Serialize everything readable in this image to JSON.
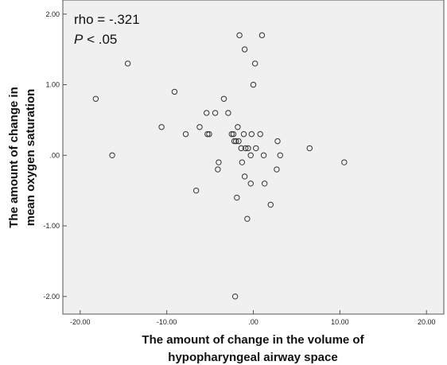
{
  "chart_data": {
    "type": "scatter",
    "xlabel_lines": [
      "The amount of change in the volume of",
      "hypopharyngeal airway space"
    ],
    "ylabel_lines": [
      "The amount of change in",
      "mean oxygen saturation"
    ],
    "annotation": {
      "rho": "rho = -.321",
      "p_italic": "P",
      "p_rest": " < .05"
    },
    "xlim": [
      -22,
      22
    ],
    "ylim": [
      -2.25,
      2.2
    ],
    "x_ticks": [
      -20,
      -10,
      0,
      10,
      20
    ],
    "x_tick_labels": [
      "-20.00",
      "-10.00",
      ".00",
      "10.00",
      "20.00"
    ],
    "y_ticks": [
      2,
      1,
      0,
      -1,
      -2
    ],
    "y_tick_labels": [
      "2.00",
      "1.00",
      ".00",
      "-1.00",
      "-2.00"
    ],
    "grid": false,
    "colors": {
      "plot_background": "#f0f0f0",
      "marker_stroke": "#333333",
      "marker_fill": "none"
    },
    "points": [
      {
        "x": -18.2,
        "y": 0.8
      },
      {
        "x": -16.3,
        "y": 0.0
      },
      {
        "x": -14.5,
        "y": 1.3
      },
      {
        "x": -10.6,
        "y": 0.4
      },
      {
        "x": -9.1,
        "y": 0.9
      },
      {
        "x": -7.8,
        "y": 0.3
      },
      {
        "x": -6.2,
        "y": 0.4
      },
      {
        "x": -6.6,
        "y": -0.5
      },
      {
        "x": -5.4,
        "y": 0.6
      },
      {
        "x": -5.3,
        "y": 0.3
      },
      {
        "x": -5.1,
        "y": 0.3
      },
      {
        "x": -4.4,
        "y": 0.6
      },
      {
        "x": -4.0,
        "y": -0.1
      },
      {
        "x": -4.1,
        "y": -0.2
      },
      {
        "x": -3.4,
        "y": 0.8
      },
      {
        "x": -2.9,
        "y": 0.6
      },
      {
        "x": -2.5,
        "y": 0.3
      },
      {
        "x": -2.3,
        "y": 0.3
      },
      {
        "x": -2.2,
        "y": 0.2
      },
      {
        "x": -2.0,
        "y": 0.2
      },
      {
        "x": -1.7,
        "y": 0.2
      },
      {
        "x": -1.8,
        "y": 0.4
      },
      {
        "x": -1.9,
        "y": -0.6
      },
      {
        "x": -2.1,
        "y": -2.0
      },
      {
        "x": -1.6,
        "y": 1.7
      },
      {
        "x": -1.4,
        "y": 0.1
      },
      {
        "x": -1.3,
        "y": -0.1
      },
      {
        "x": -1.1,
        "y": 0.3
      },
      {
        "x": -1.0,
        "y": 1.5
      },
      {
        "x": -1.0,
        "y": -0.3
      },
      {
        "x": -0.9,
        "y": 0.1
      },
      {
        "x": -0.6,
        "y": 0.1
      },
      {
        "x": -0.7,
        "y": -0.9
      },
      {
        "x": -0.3,
        "y": 0.0
      },
      {
        "x": -0.2,
        "y": 0.3
      },
      {
        "x": -0.3,
        "y": -0.4
      },
      {
        "x": 0.0,
        "y": 1.0
      },
      {
        "x": 0.2,
        "y": 1.3
      },
      {
        "x": 0.3,
        "y": 0.1
      },
      {
        "x": 0.8,
        "y": 0.3
      },
      {
        "x": 1.0,
        "y": 1.7
      },
      {
        "x": 1.2,
        "y": 0.0
      },
      {
        "x": 1.3,
        "y": -0.4
      },
      {
        "x": 2.0,
        "y": -0.7
      },
      {
        "x": 2.7,
        "y": -0.2
      },
      {
        "x": 2.8,
        "y": 0.2
      },
      {
        "x": 3.1,
        "y": 0.0
      },
      {
        "x": 6.5,
        "y": 0.1
      },
      {
        "x": 10.5,
        "y": -0.1
      }
    ]
  }
}
